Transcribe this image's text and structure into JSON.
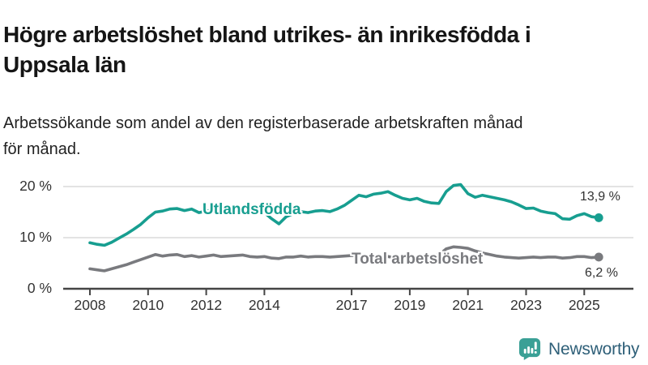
{
  "title": "Högre arbetslöshet bland utrikes- än inrikesfödda i\nUppsala län",
  "subtitle": "Arbetssökande som andel av den registerbaserade arbetskraften månad\nför månad.",
  "footer": {
    "brand": "Newsworthy",
    "logo_icon": "bar-chart-speech-bubble-icon"
  },
  "colors": {
    "foreign_born": "#179e90",
    "total": "#797a7e",
    "grid": "#dadada",
    "axis": "#454545",
    "tick_text": "#333333",
    "value_text": "#333333",
    "title_text": "#151515",
    "brand_icon": "#3aa096",
    "brand_text": "#2e5f78"
  },
  "chart_data": {
    "type": "line",
    "title": "Högre arbetslöshet bland utrikes- än inrikesfödda i Uppsala län",
    "subtitle": "Arbetssökande som andel av den registerbaserade arbetskraften månad för månad.",
    "xlabel": "",
    "ylabel": "",
    "grid": "horizontal",
    "legend_position": "inline-labels",
    "xlim": [
      2007.3,
      2026.2
    ],
    "ylim": [
      0,
      22
    ],
    "x_ticks": [
      {
        "year": 2008,
        "label": "2008"
      },
      {
        "year": 2010,
        "label": "2010"
      },
      {
        "year": 2012,
        "label": "2012"
      },
      {
        "year": 2014,
        "label": "2014"
      },
      {
        "year": 2017,
        "label": "2017"
      },
      {
        "year": 2019,
        "label": "2019"
      },
      {
        "year": 2021,
        "label": "2021"
      },
      {
        "year": 2023,
        "label": "2023"
      },
      {
        "year": 2025,
        "label": "2025"
      }
    ],
    "y_ticks": [
      {
        "value": 20,
        "label": "20 %"
      },
      {
        "value": 10,
        "label": "10 %"
      },
      {
        "value": 0,
        "label": "0 %"
      }
    ],
    "x_start": 2008.0,
    "x_step": 0.25,
    "unit": "percent of registered labour force, monthly",
    "series": [
      {
        "name": "Utlandsfödda",
        "color": "#179e90",
        "end_label": "13,9 %",
        "end_value": 13.9,
        "values": [
          9.0,
          8.7,
          8.5,
          9.1,
          9.9,
          10.7,
          11.6,
          12.6,
          13.9,
          15.0,
          15.2,
          15.6,
          15.7,
          15.3,
          15.6,
          14.9,
          15.2,
          15.5,
          15.1,
          15.3,
          15.2,
          15.5,
          15.0,
          14.8,
          14.9,
          13.7,
          12.7,
          14.1,
          14.7,
          15.1,
          14.9,
          15.2,
          15.3,
          15.1,
          15.6,
          16.3,
          17.3,
          18.3,
          18.0,
          18.5,
          18.7,
          19.0,
          18.3,
          17.7,
          17.4,
          17.7,
          17.1,
          16.8,
          16.7,
          19.0,
          20.2,
          20.4,
          18.6,
          17.9,
          18.3,
          18.0,
          17.7,
          17.4,
          17.0,
          16.4,
          15.7,
          15.8,
          15.2,
          14.9,
          14.7,
          13.7,
          13.6,
          14.3,
          14.7,
          14.1,
          13.9
        ]
      },
      {
        "name": "Total arbetslöshet",
        "color": "#797a7e",
        "end_label": "6,2 %",
        "end_value": 6.2,
        "values": [
          3.9,
          3.7,
          3.5,
          3.9,
          4.3,
          4.7,
          5.2,
          5.7,
          6.2,
          6.7,
          6.4,
          6.6,
          6.7,
          6.3,
          6.5,
          6.2,
          6.4,
          6.6,
          6.3,
          6.4,
          6.5,
          6.6,
          6.3,
          6.2,
          6.3,
          6.0,
          5.9,
          6.2,
          6.2,
          6.4,
          6.2,
          6.3,
          6.3,
          6.2,
          6.3,
          6.4,
          6.5,
          6.6,
          6.4,
          6.5,
          6.4,
          6.3,
          6.1,
          6.2,
          6.2,
          6.3,
          6.4,
          6.5,
          6.6,
          7.8,
          8.2,
          8.1,
          7.9,
          7.4,
          7.0,
          6.7,
          6.4,
          6.2,
          6.1,
          6.0,
          6.1,
          6.2,
          6.1,
          6.2,
          6.2,
          6.0,
          6.1,
          6.3,
          6.3,
          6.1,
          6.2
        ]
      }
    ]
  }
}
